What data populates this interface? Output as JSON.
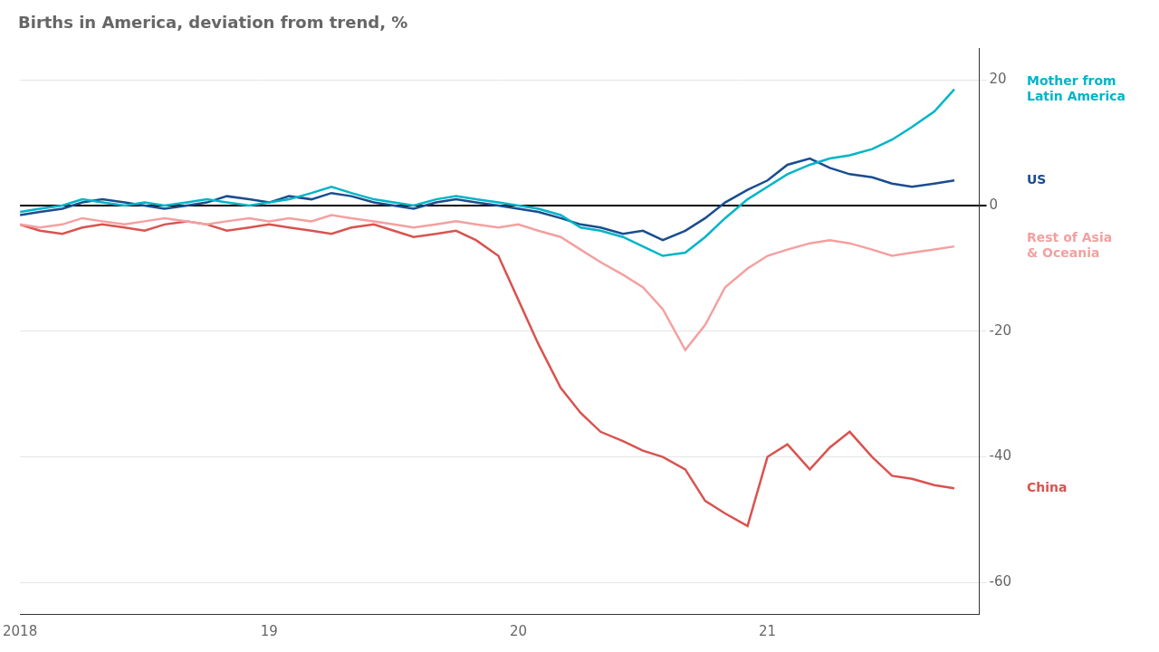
{
  "chart_data": {
    "type": "line",
    "title": "Births in America, deviation from trend, %",
    "x": [
      2018.0,
      2018.08,
      2018.17,
      2018.25,
      2018.33,
      2018.42,
      2018.5,
      2018.58,
      2018.67,
      2018.75,
      2018.83,
      2018.92,
      2019.0,
      2019.08,
      2019.17,
      2019.25,
      2019.33,
      2019.42,
      2019.5,
      2019.58,
      2019.67,
      2019.75,
      2019.83,
      2019.92,
      2020.0,
      2020.08,
      2020.17,
      2020.25,
      2020.33,
      2020.42,
      2020.5,
      2020.58,
      2020.67,
      2020.75,
      2020.83,
      2020.92,
      2021.0,
      2021.08,
      2021.17,
      2021.25,
      2021.33,
      2021.42,
      2021.5,
      2021.58,
      2021.67,
      2021.75
    ],
    "series": [
      {
        "name": "Rest of Asia\n& Oceania",
        "color": "#f4a0a0",
        "values": [
          -3.0,
          -3.5,
          -3.0,
          -2.0,
          -2.5,
          -3.0,
          -2.5,
          -2.0,
          -2.5,
          -3.0,
          -2.5,
          -2.0,
          -2.5,
          -2.0,
          -2.5,
          -1.5,
          -2.0,
          -2.5,
          -3.0,
          -3.5,
          -3.0,
          -2.5,
          -3.0,
          -3.5,
          -3.0,
          -4.0,
          -5.0,
          -7.0,
          -9.0,
          -11.0,
          -13.0,
          -16.5,
          -23.0,
          -19.0,
          -13.0,
          -10.0,
          -8.0,
          -7.0,
          -6.0,
          -5.5,
          -6.0,
          -7.0,
          -8.0,
          -7.5,
          -7.0,
          -6.5
        ]
      },
      {
        "name": "Mother from\nLatin America",
        "color": "#00b5c8",
        "values": [
          -1.0,
          -0.5,
          0.0,
          1.0,
          0.5,
          0.0,
          0.5,
          0.0,
          0.5,
          1.0,
          0.5,
          0.0,
          0.5,
          1.0,
          2.0,
          3.0,
          2.0,
          1.0,
          0.5,
          0.0,
          1.0,
          1.5,
          1.0,
          0.5,
          0.0,
          -0.5,
          -1.5,
          -3.5,
          -4.0,
          -5.0,
          -6.5,
          -8.0,
          -7.5,
          -5.0,
          -2.0,
          1.0,
          3.0,
          5.0,
          6.5,
          7.5,
          8.0,
          9.0,
          10.5,
          12.5,
          15.0,
          18.5
        ]
      },
      {
        "name": "US",
        "color": "#1a4d8f",
        "values": [
          -1.5,
          -1.0,
          -0.5,
          0.5,
          1.0,
          0.5,
          0.0,
          -0.5,
          0.0,
          0.5,
          1.5,
          1.0,
          0.5,
          1.5,
          1.0,
          2.0,
          1.5,
          0.5,
          0.0,
          -0.5,
          0.5,
          1.0,
          0.5,
          0.0,
          -0.5,
          -1.0,
          -2.0,
          -3.0,
          -3.5,
          -4.5,
          -4.0,
          -5.5,
          -4.0,
          -2.0,
          0.5,
          2.5,
          4.0,
          6.5,
          7.5,
          6.0,
          5.0,
          4.5,
          3.5,
          3.0,
          3.5,
          4.0
        ]
      },
      {
        "name": "China",
        "color": "#d9534f",
        "values": [
          -3.0,
          -4.0,
          -4.5,
          -3.5,
          -3.0,
          -3.5,
          -4.0,
          -3.0,
          -2.5,
          -3.0,
          -4.0,
          -3.5,
          -3.0,
          -3.5,
          -4.0,
          -4.5,
          -3.5,
          -3.0,
          -4.0,
          -5.0,
          -4.5,
          -4.0,
          -5.5,
          -8.0,
          -15.0,
          -22.0,
          -29.0,
          -33.0,
          -36.0,
          -37.5,
          -39.0,
          -40.0,
          -42.0,
          -47.0,
          -49.0,
          -51.0,
          -40.0,
          -38.0,
          -42.0,
          -38.5,
          -36.0,
          -40.0,
          -43.0,
          -43.5,
          -44.5,
          -45.0
        ]
      }
    ],
    "xlim": [
      2018.0,
      2021.85
    ],
    "xticks": [
      2018,
      {
        "value": 2019,
        "label": "19"
      },
      {
        "value": 2020,
        "label": "20"
      },
      {
        "value": 2021,
        "label": "21"
      }
    ],
    "ylim": [
      -65,
      25
    ],
    "yticks": [
      20,
      0,
      -20,
      -40,
      -60
    ],
    "grid": "y"
  }
}
